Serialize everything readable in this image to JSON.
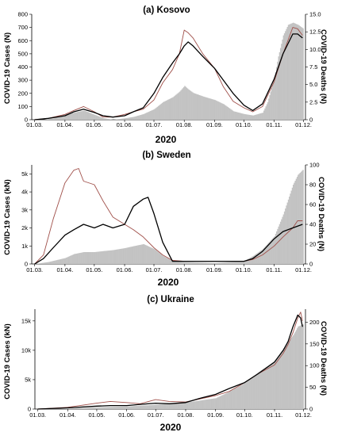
{
  "figure": {
    "panels": [
      {
        "title": "(a) Kosovo",
        "ylabel_left": "COVID-19 Cases (N)",
        "ylabel_right": "COVID-19 Deaths (N)",
        "xlabel": "2020",
        "left_ticks": [
          "0",
          "100",
          "200",
          "300",
          "400",
          "500",
          "600",
          "700",
          "800"
        ],
        "right_ticks": [
          "0",
          "2.5",
          "5.0",
          "7.5",
          "10.0",
          "12.5",
          "15.0"
        ]
      },
      {
        "title": "(b) Sweden",
        "ylabel_left": "COVID-19 Cases (kN)",
        "ylabel_right": "COVID-19 Deaths (N)",
        "xlabel": "2020",
        "left_ticks": [
          "0",
          "1k",
          "2k",
          "3k",
          "4k",
          "5k"
        ],
        "right_ticks": [
          "0",
          "20",
          "40",
          "60",
          "80",
          "100"
        ]
      },
      {
        "title": "(c) Ukraine",
        "ylabel_left": "COVID-19 Cases (kN)",
        "ylabel_right": "COVID-19 Deaths (N)",
        "xlabel": "2020",
        "left_ticks": [
          "0",
          "5k",
          "10k",
          "15k"
        ],
        "right_ticks": [
          "0",
          "50",
          "100",
          "150",
          "200"
        ]
      }
    ],
    "x_ticks": [
      "01.03.",
      "01.04.",
      "01.05.",
      "01.06.",
      "01.07.",
      "01.08.",
      "01.09.",
      "01.10.",
      "01.11.",
      "01.12."
    ],
    "colors": {
      "cases": "#000000",
      "smoothed": "#a0504a",
      "deaths": "#c3c3c3"
    }
  },
  "chart_data": [
    {
      "type": "area",
      "title": "(a) Kosovo",
      "xlabel": "2020",
      "ylabel": "COVID-19 Cases (N)",
      "y2label": "COVID-19 Deaths (N)",
      "x_unit": "day-of-month-date (01.03. to 01.12. 2020)",
      "ylim": [
        0,
        800
      ],
      "y2lim": [
        0,
        15
      ],
      "series": [
        {
          "kind": "bar",
          "axis": "right",
          "points": [
            [
              "01.03.",
              0
            ],
            [
              "10.03.",
              0
            ],
            [
              "20.03.",
              0.2
            ],
            [
              "01.04.",
              0.8
            ],
            [
              "10.04.",
              1
            ],
            [
              "20.04.",
              1.3
            ],
            [
              "01.05.",
              0.7
            ],
            [
              "10.05.",
              0.2
            ],
            [
              "20.05.",
              0
            ],
            [
              "01.06.",
              0.2
            ],
            [
              "10.06.",
              0.4
            ],
            [
              "20.06.",
              0.8
            ],
            [
              "01.07.",
              1.5
            ],
            [
              "10.07.",
              2.5
            ],
            [
              "20.07.",
              3.2
            ],
            [
              "27.07.",
              4.0
            ],
            [
              "01.08.",
              4.8
            ],
            [
              "05.08.",
              4.3
            ],
            [
              "10.08.",
              3.8
            ],
            [
              "20.08.",
              3.3
            ],
            [
              "01.09.",
              2.8
            ],
            [
              "10.09.",
              2.2
            ],
            [
              "20.09.",
              1.2
            ],
            [
              "01.10.",
              0.8
            ],
            [
              "10.10.",
              0.6
            ],
            [
              "20.10.",
              1.0
            ],
            [
              "25.10.",
              2.5
            ],
            [
              "01.11.",
              6
            ],
            [
              "05.11.",
              9
            ],
            [
              "10.11.",
              12
            ],
            [
              "15.11.",
              13.5
            ],
            [
              "20.11.",
              13.8
            ],
            [
              "25.11.",
              13.5
            ],
            [
              "30.11.",
              13
            ]
          ]
        },
        {
          "kind": "line",
          "axis": "left",
          "points": [
            [
              "01.03.",
              0
            ],
            [
              "15.03.",
              10
            ],
            [
              "01.04.",
              30
            ],
            [
              "10.04.",
              60
            ],
            [
              "20.04.",
              80
            ],
            [
              "01.05.",
              55
            ],
            [
              "10.05.",
              30
            ],
            [
              "20.05.",
              20
            ],
            [
              "01.06.",
              30
            ],
            [
              "10.06.",
              60
            ],
            [
              "20.06.",
              90
            ],
            [
              "01.07.",
              200
            ],
            [
              "10.07.",
              320
            ],
            [
              "20.07.",
              430
            ],
            [
              "27.07.",
              500
            ],
            [
              "01.08.",
              560
            ],
            [
              "05.08.",
              590
            ],
            [
              "10.08.",
              560
            ],
            [
              "20.08.",
              480
            ],
            [
              "01.09.",
              390
            ],
            [
              "10.09.",
              300
            ],
            [
              "20.09.",
              200
            ],
            [
              "01.10.",
              110
            ],
            [
              "10.10.",
              70
            ],
            [
              "20.10.",
              120
            ],
            [
              "01.11.",
              310
            ],
            [
              "10.11.",
              500
            ],
            [
              "20.11.",
              650
            ],
            [
              "25.11.",
              650
            ],
            [
              "30.11.",
              620
            ]
          ]
        },
        {
          "kind": "line",
          "axis": "left",
          "points": [
            [
              "01.03.",
              0
            ],
            [
              "15.03.",
              10
            ],
            [
              "01.04.",
              40
            ],
            [
              "10.04.",
              70
            ],
            [
              "20.04.",
              100
            ],
            [
              "01.05.",
              60
            ],
            [
              "10.05.",
              20
            ],
            [
              "20.05.",
              20
            ],
            [
              "01.06.",
              40
            ],
            [
              "10.06.",
              60
            ],
            [
              "20.06.",
              80
            ],
            [
              "01.07.",
              150
            ],
            [
              "10.07.",
              280
            ],
            [
              "20.07.",
              380
            ],
            [
              "27.07.",
              500
            ],
            [
              "01.08.",
              680
            ],
            [
              "05.08.",
              660
            ],
            [
              "10.08.",
              620
            ],
            [
              "20.08.",
              500
            ],
            [
              "01.09.",
              390
            ],
            [
              "10.09.",
              250
            ],
            [
              "20.09.",
              140
            ],
            [
              "01.10.",
              90
            ],
            [
              "10.10.",
              60
            ],
            [
              "20.10.",
              100
            ],
            [
              "01.11.",
              290
            ],
            [
              "10.11.",
              500
            ],
            [
              "20.11.",
              700
            ],
            [
              "25.11.",
              690
            ],
            [
              "30.11.",
              640
            ]
          ]
        }
      ]
    },
    {
      "type": "area",
      "title": "(b) Sweden",
      "xlabel": "2020",
      "ylabel": "COVID-19 Cases (kN)",
      "y2label": "COVID-19 Deaths (N)",
      "ylim": [
        0,
        5500
      ],
      "y2lim": [
        0,
        100
      ],
      "series": [
        {
          "kind": "bar",
          "axis": "right",
          "points": [
            [
              "01.03.",
              0
            ],
            [
              "15.03.",
              2
            ],
            [
              "01.04.",
              6
            ],
            [
              "10.04.",
              10
            ],
            [
              "20.04.",
              12
            ],
            [
              "01.05.",
              12
            ],
            [
              "10.05.",
              13
            ],
            [
              "20.05.",
              14
            ],
            [
              "01.06.",
              16
            ],
            [
              "10.06.",
              18
            ],
            [
              "20.06.",
              20
            ],
            [
              "01.07.",
              15
            ],
            [
              "10.07.",
              8
            ],
            [
              "20.07.",
              3
            ],
            [
              "01.08.",
              2
            ],
            [
              "01.09.",
              1
            ],
            [
              "01.10.",
              3
            ],
            [
              "10.10.",
              8
            ],
            [
              "20.10.",
              15
            ],
            [
              "01.11.",
              28
            ],
            [
              "10.11.",
              50
            ],
            [
              "20.11.",
              80
            ],
            [
              "25.11.",
              90
            ],
            [
              "30.11.",
              95
            ]
          ]
        },
        {
          "kind": "line",
          "axis": "left",
          "points": [
            [
              "01.03.",
              0
            ],
            [
              "10.03.",
              300
            ],
            [
              "20.03.",
              900
            ],
            [
              "01.04.",
              1600
            ],
            [
              "10.04.",
              1900
            ],
            [
              "20.04.",
              2200
            ],
            [
              "01.05.",
              2000
            ],
            [
              "10.05.",
              2200
            ],
            [
              "20.05.",
              2000
            ],
            [
              "01.06.",
              2200
            ],
            [
              "10.06.",
              3200
            ],
            [
              "20.06.",
              3600
            ],
            [
              "25.06.",
              3700
            ],
            [
              "01.07.",
              2800
            ],
            [
              "10.07.",
              1200
            ],
            [
              "20.07.",
              150
            ],
            [
              "01.08.",
              150
            ],
            [
              "01.09.",
              150
            ],
            [
              "01.10.",
              150
            ],
            [
              "10.10.",
              300
            ],
            [
              "20.10.",
              700
            ],
            [
              "01.11.",
              1400
            ],
            [
              "10.11.",
              1800
            ],
            [
              "20.11.",
              2000
            ],
            [
              "30.11.",
              2200
            ]
          ]
        },
        {
          "kind": "line",
          "axis": "left",
          "points": [
            [
              "01.03.",
              0
            ],
            [
              "10.03.",
              500
            ],
            [
              "20.03.",
              2500
            ],
            [
              "01.04.",
              4500
            ],
            [
              "10.04.",
              5200
            ],
            [
              "15.04.",
              5300
            ],
            [
              "20.04.",
              4600
            ],
            [
              "01.05.",
              4400
            ],
            [
              "10.05.",
              3500
            ],
            [
              "20.05.",
              2600
            ],
            [
              "01.06.",
              2200
            ],
            [
              "10.06.",
              1900
            ],
            [
              "20.06.",
              1500
            ],
            [
              "01.07.",
              900
            ],
            [
              "10.07.",
              500
            ],
            [
              "20.07.",
              200
            ],
            [
              "01.08.",
              150
            ],
            [
              "01.09.",
              150
            ],
            [
              "01.10.",
              150
            ],
            [
              "10.10.",
              250
            ],
            [
              "20.10.",
              500
            ],
            [
              "01.11.",
              1000
            ],
            [
              "10.11.",
              1500
            ],
            [
              "20.11.",
              2000
            ],
            [
              "25.11.",
              2400
            ],
            [
              "30.11.",
              2400
            ]
          ]
        }
      ]
    },
    {
      "type": "area",
      "title": "(c) Ukraine",
      "xlabel": "2020",
      "ylabel": "COVID-19 Cases (kN)",
      "y2label": "COVID-19 Deaths (N)",
      "ylim": [
        0,
        17000
      ],
      "y2lim": [
        0,
        230
      ],
      "series": [
        {
          "kind": "bar",
          "axis": "right",
          "points": [
            [
              "01.03.",
              0
            ],
            [
              "01.04.",
              1
            ],
            [
              "01.05.",
              4
            ],
            [
              "01.06.",
              6
            ],
            [
              "01.07.",
              10
            ],
            [
              "01.08.",
              15
            ],
            [
              "01.09.",
              25
            ],
            [
              "15.09.",
              40
            ],
            [
              "01.10.",
              60
            ],
            [
              "15.10.",
              85
            ],
            [
              "01.11.",
              110
            ],
            [
              "10.11.",
              140
            ],
            [
              "20.11.",
              170
            ],
            [
              "25.11.",
              190
            ],
            [
              "30.11.",
              195
            ]
          ]
        },
        {
          "kind": "line",
          "axis": "left",
          "points": [
            [
              "01.03.",
              0
            ],
            [
              "01.04.",
              200
            ],
            [
              "01.05.",
              500
            ],
            [
              "15.05.",
              600
            ],
            [
              "01.06.",
              600
            ],
            [
              "15.06.",
              800
            ],
            [
              "01.07.",
              1000
            ],
            [
              "15.07.",
              900
            ],
            [
              "01.08.",
              1100
            ],
            [
              "15.08.",
              1800
            ],
            [
              "01.09.",
              2500
            ],
            [
              "15.09.",
              3500
            ],
            [
              "01.10.",
              4500
            ],
            [
              "15.10.",
              6000
            ],
            [
              "01.11.",
              8000
            ],
            [
              "10.11.",
              10000
            ],
            [
              "15.11.",
              11500
            ],
            [
              "20.11.",
              14000
            ],
            [
              "25.11.",
              16000
            ],
            [
              "28.11.",
              15500
            ],
            [
              "30.11.",
              14000
            ]
          ]
        },
        {
          "kind": "line",
          "axis": "left",
          "points": [
            [
              "01.03.",
              0
            ],
            [
              "01.04.",
              300
            ],
            [
              "01.05.",
              1000
            ],
            [
              "15.05.",
              1300
            ],
            [
              "01.06.",
              1100
            ],
            [
              "15.06.",
              900
            ],
            [
              "01.07.",
              1600
            ],
            [
              "15.07.",
              1300
            ],
            [
              "01.08.",
              1200
            ],
            [
              "15.08.",
              1700
            ],
            [
              "01.09.",
              2300
            ],
            [
              "15.09.",
              3000
            ],
            [
              "01.10.",
              4500
            ],
            [
              "15.10.",
              6000
            ],
            [
              "01.11.",
              7500
            ],
            [
              "10.11.",
              9500
            ],
            [
              "15.11.",
              11000
            ],
            [
              "20.11.",
              13000
            ],
            [
              "25.11.",
              15500
            ],
            [
              "28.11.",
              16500
            ],
            [
              "30.11.",
              15000
            ]
          ]
        }
      ]
    }
  ]
}
